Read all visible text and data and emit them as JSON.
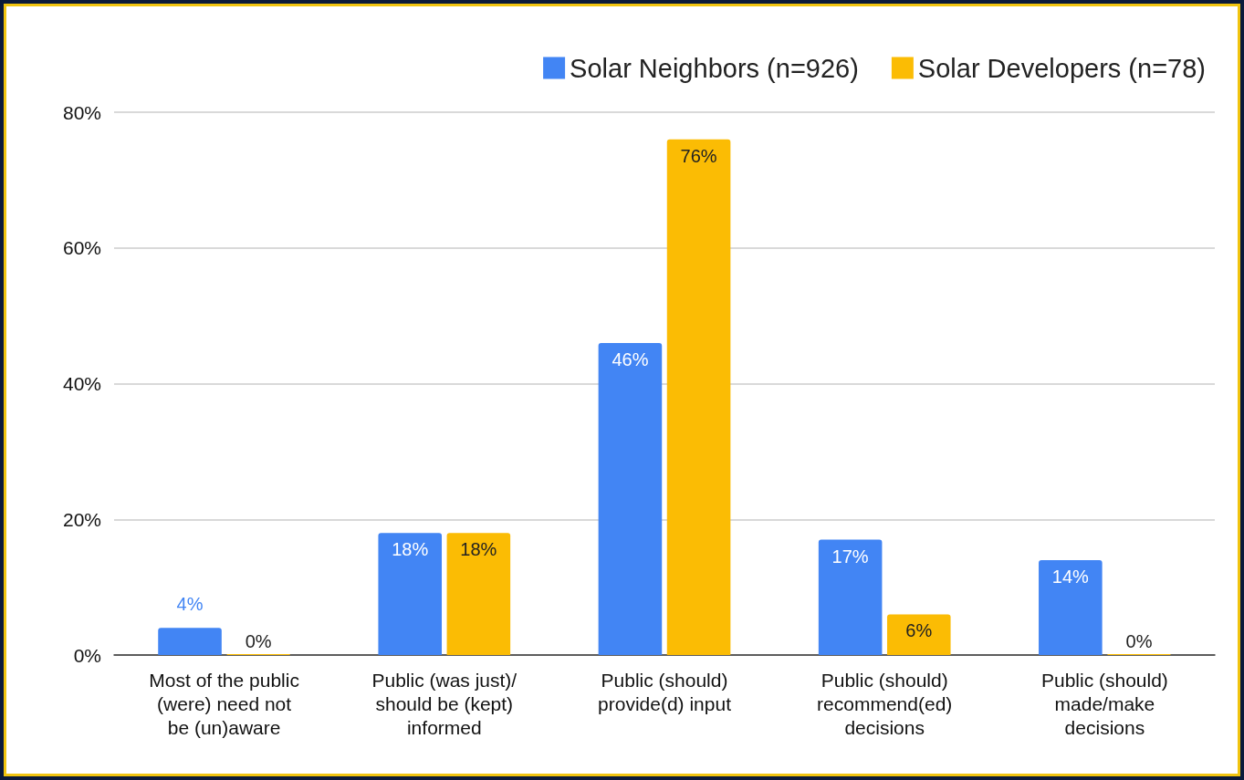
{
  "chart_data": {
    "type": "bar",
    "categories": [
      "Most of the public\n(were) need not\nbe (un)aware",
      "Public (was just)/\nshould be (kept)\ninformed",
      "Public (should)\nprovide(d) input",
      "Public (should)\nrecommend(ed)\ndecisions",
      "Public (should)\nmade/make\ndecisions"
    ],
    "series": [
      {
        "name": "Solar Neighbors (n=926)",
        "color": "#4285f4",
        "values": [
          4,
          18,
          46,
          17,
          14
        ],
        "value_labels": [
          "4%",
          "18%",
          "46%",
          "17%",
          "14%"
        ]
      },
      {
        "name": "Solar Developers (n=78)",
        "color": "#fbbc04",
        "values": [
          0,
          18,
          76,
          6,
          0
        ],
        "value_labels": [
          "0%",
          "18%",
          "76%",
          "6%",
          "0%"
        ]
      }
    ],
    "ylim": [
      0,
      80
    ],
    "yticks": [
      {
        "value": 0,
        "label": "0%"
      },
      {
        "value": 20,
        "label": "20%"
      },
      {
        "value": 40,
        "label": "40%"
      },
      {
        "value": 60,
        "label": "60%"
      },
      {
        "value": 80,
        "label": "80%"
      }
    ],
    "grid": "y",
    "legend": "top right"
  }
}
